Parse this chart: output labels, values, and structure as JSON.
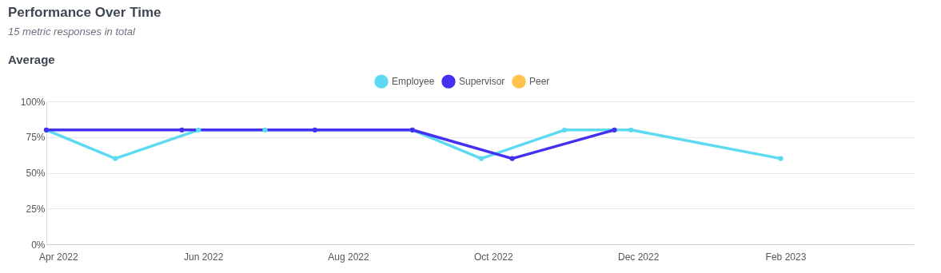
{
  "chart_data": {
    "type": "line",
    "title": "Performance Over Time",
    "subtitle": "15 metric responses in total",
    "annotations": [
      "Average"
    ],
    "xlim": [
      "2022-03-27",
      "2023-03-27"
    ],
    "xticks": [
      {
        "value": "2022-04-01",
        "label": "Apr 2022"
      },
      {
        "value": "2022-06-01",
        "label": "Jun 2022"
      },
      {
        "value": "2022-08-01",
        "label": "Aug 2022"
      },
      {
        "value": "2022-10-01",
        "label": "Oct 2022"
      },
      {
        "value": "2022-12-01",
        "label": "Dec 2022"
      },
      {
        "value": "2023-02-01",
        "label": "Feb 2023"
      }
    ],
    "ylim": [
      0,
      100
    ],
    "yticks": [
      {
        "value": 0,
        "label": "0%"
      },
      {
        "value": 25,
        "label": "25%"
      },
      {
        "value": 50,
        "label": "50%"
      },
      {
        "value": 75,
        "label": "75%"
      },
      {
        "value": 100,
        "label": "100%"
      }
    ],
    "series": [
      {
        "name": "Employee",
        "color": "#5ddaf2",
        "x": [
          "2022-03-27",
          "2022-04-25",
          "2022-05-30",
          "2022-06-27",
          "2022-08-28",
          "2022-09-26",
          "2022-10-31",
          "2022-11-28",
          "2023-01-30"
        ],
        "values": [
          80,
          60,
          80,
          80,
          80,
          60,
          80,
          80,
          60
        ]
      },
      {
        "name": "Supervisor",
        "color": "#4330f0",
        "x": [
          "2022-03-27",
          "2022-05-23",
          "2022-07-18",
          "2022-08-28",
          "2022-10-09",
          "2022-11-21"
        ],
        "values": [
          80,
          80,
          80,
          80,
          60,
          80
        ]
      },
      {
        "name": "Peer",
        "color": "#ffc24d"
      }
    ],
    "grid": "y",
    "legend": "top",
    "marker": "circle",
    "line_style": "solid"
  }
}
